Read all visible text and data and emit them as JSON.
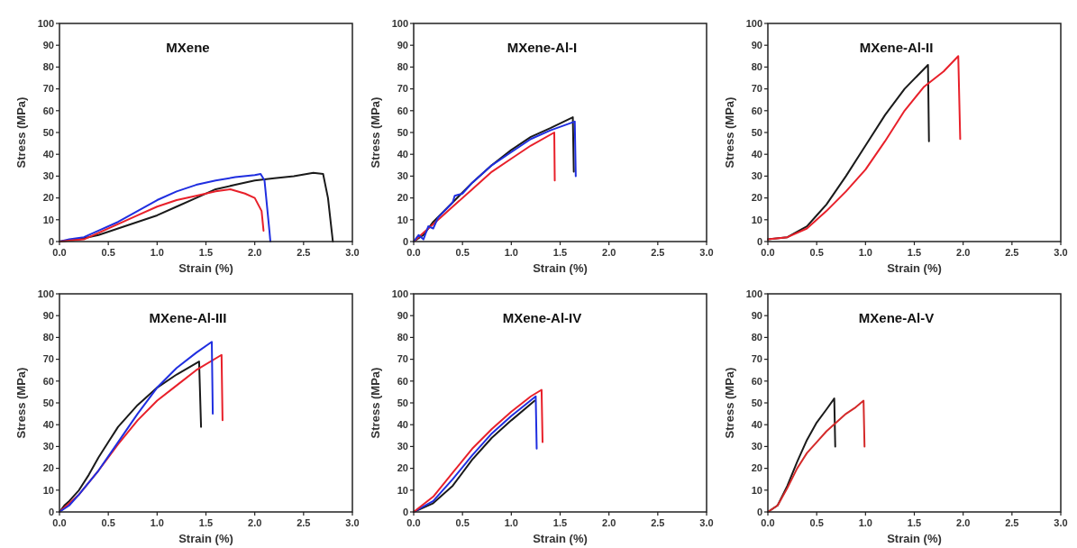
{
  "chart_data": [
    {
      "type": "line",
      "title": "MXene",
      "xlabel": "Strain (%)",
      "ylabel": "Stress (MPa)",
      "xlim": [
        0,
        3
      ],
      "ylim": [
        0,
        100
      ],
      "xticks": [
        {
          "value": 0,
          "label": "0.0"
        },
        {
          "value": 0.5,
          "label": "0.5"
        },
        {
          "value": 1,
          "label": "1.0"
        },
        {
          "value": 1.5,
          "label": "1.5"
        },
        {
          "value": 2,
          "label": "2.0"
        },
        {
          "value": 2.5,
          "label": "2.5"
        },
        {
          "value": 3,
          "label": "3.0"
        }
      ],
      "yticks": [
        0,
        10,
        20,
        30,
        40,
        50,
        60,
        70,
        80,
        90,
        100
      ],
      "grid": false,
      "series": [
        {
          "color": "#1a1a1a",
          "x": [
            0,
            0.2,
            0.4,
            0.6,
            0.8,
            1.0,
            1.2,
            1.4,
            1.6,
            1.8,
            2.0,
            2.2,
            2.4,
            2.6,
            2.7,
            2.75,
            2.8
          ],
          "values": [
            0,
            1,
            3,
            6,
            9,
            12,
            16,
            20,
            24,
            26,
            28,
            29,
            30,
            31.5,
            31,
            20,
            0
          ]
        },
        {
          "color": "#1f2ee0",
          "x": [
            0,
            0.1,
            0.25,
            0.4,
            0.6,
            0.8,
            1.0,
            1.2,
            1.4,
            1.6,
            1.8,
            2.0,
            2.06,
            2.1,
            2.15,
            2.16
          ],
          "values": [
            0,
            1,
            2,
            5,
            9,
            14,
            19,
            23,
            26,
            28,
            29.5,
            30.5,
            31,
            28,
            5,
            0
          ]
        },
        {
          "color": "#e8202a",
          "x": [
            0,
            0.25,
            0.4,
            0.6,
            0.8,
            1.0,
            1.2,
            1.4,
            1.6,
            1.75,
            1.9,
            2.0,
            2.07,
            2.09
          ],
          "values": [
            0,
            1,
            4,
            8,
            12,
            16,
            19,
            21,
            23,
            24,
            22,
            20,
            14,
            5
          ]
        }
      ]
    },
    {
      "type": "line",
      "title": "MXene-Al-I",
      "xlabel": "Strain (%)",
      "ylabel": "Stress (MPa)",
      "xlim": [
        0,
        3
      ],
      "ylim": [
        0,
        100
      ],
      "xticks": [
        {
          "value": 0,
          "label": "0.0"
        },
        {
          "value": 0.5,
          "label": "0.5"
        },
        {
          "value": 1,
          "label": "1.0"
        },
        {
          "value": 1.5,
          "label": "1.5"
        },
        {
          "value": 2,
          "label": "2.0"
        },
        {
          "value": 2.5,
          "label": "2.5"
        },
        {
          "value": 3,
          "label": "3.0"
        }
      ],
      "yticks": [
        0,
        10,
        20,
        30,
        40,
        50,
        60,
        70,
        80,
        90,
        100
      ],
      "grid": false,
      "series": [
        {
          "color": "#1a1a1a",
          "x": [
            0,
            0.1,
            0.2,
            0.4,
            0.6,
            0.8,
            1.0,
            1.2,
            1.4,
            1.63,
            1.64
          ],
          "values": [
            0,
            3,
            9,
            18,
            27,
            35,
            42,
            48,
            52,
            57,
            32
          ]
        },
        {
          "color": "#e8202a",
          "x": [
            0,
            0.1,
            0.2,
            0.4,
            0.6,
            0.8,
            1.0,
            1.2,
            1.44,
            1.445
          ],
          "values": [
            0,
            4,
            8,
            16,
            24,
            32,
            38,
            44,
            50,
            28
          ]
        },
        {
          "color": "#1f2ee0",
          "x": [
            0,
            0.05,
            0.1,
            0.15,
            0.2,
            0.25,
            0.4,
            0.42,
            0.5,
            0.6,
            0.8,
            1.0,
            1.2,
            1.4,
            1.65,
            1.66
          ],
          "values": [
            0,
            3,
            1,
            7,
            6,
            11,
            18,
            21,
            22,
            27,
            35,
            41,
            47,
            51,
            55,
            30
          ]
        }
      ]
    },
    {
      "type": "line",
      "title": "MXene-Al-II",
      "xlabel": "Strain (%)",
      "ylabel": "Stress (MPa)",
      "xlim": [
        0,
        3
      ],
      "ylim": [
        0,
        100
      ],
      "xticks": [
        {
          "value": 0,
          "label": "0.0"
        },
        {
          "value": 0.5,
          "label": "0.5"
        },
        {
          "value": 1,
          "label": "1.0"
        },
        {
          "value": 1.5,
          "label": "1.5"
        },
        {
          "value": 2,
          "label": "2.0"
        },
        {
          "value": 2.5,
          "label": "2.5"
        },
        {
          "value": 3,
          "label": "3.0"
        }
      ],
      "yticks": [
        0,
        10,
        20,
        30,
        40,
        50,
        60,
        70,
        80,
        90,
        100
      ],
      "grid": false,
      "series": [
        {
          "color": "#1a1a1a",
          "x": [
            0,
            0.2,
            0.4,
            0.5,
            0.6,
            0.8,
            1.0,
            1.2,
            1.4,
            1.64,
            1.65
          ],
          "values": [
            1,
            2,
            7,
            12,
            17,
            30,
            44,
            58,
            70,
            81,
            46
          ]
        },
        {
          "color": "#e8202a",
          "x": [
            0,
            0.2,
            0.4,
            0.6,
            0.8,
            1.0,
            1.2,
            1.4,
            1.6,
            1.8,
            1.95,
            1.97
          ],
          "values": [
            1,
            2,
            6,
            14,
            23,
            33,
            46,
            60,
            71,
            78,
            85,
            47
          ]
        }
      ]
    },
    {
      "type": "line",
      "title": "MXene-Al-III",
      "xlabel": "Strain (%)",
      "ylabel": "Stress (MPa)",
      "xlim": [
        0,
        3
      ],
      "ylim": [
        0,
        100
      ],
      "xticks": [
        {
          "value": 0,
          "label": "0.0"
        },
        {
          "value": 0.5,
          "label": "0.5"
        },
        {
          "value": 1,
          "label": "1.0"
        },
        {
          "value": 1.5,
          "label": "1.5"
        },
        {
          "value": 2,
          "label": "2.0"
        },
        {
          "value": 2.5,
          "label": "2.5"
        },
        {
          "value": 3,
          "label": "3.0"
        }
      ],
      "yticks": [
        0,
        10,
        20,
        30,
        40,
        50,
        60,
        70,
        80,
        90,
        100
      ],
      "grid": false,
      "series": [
        {
          "color": "#1a1a1a",
          "x": [
            0,
            0.05,
            0.1,
            0.2,
            0.3,
            0.4,
            0.5,
            0.6,
            0.8,
            1.0,
            1.2,
            1.43,
            1.45
          ],
          "values": [
            0,
            3,
            5,
            10,
            17,
            25,
            32,
            39,
            49,
            57,
            63,
            69,
            39
          ]
        },
        {
          "color": "#e8202a",
          "x": [
            0,
            0.2,
            0.4,
            0.6,
            0.8,
            1.0,
            1.2,
            1.4,
            1.66,
            1.67
          ],
          "values": [
            0,
            8,
            19,
            31,
            42,
            51,
            58,
            65,
            72,
            42
          ]
        },
        {
          "color": "#1f2ee0",
          "x": [
            0,
            0.1,
            0.2,
            0.4,
            0.6,
            0.8,
            1.0,
            1.2,
            1.4,
            1.56,
            1.57
          ],
          "values": [
            0,
            3,
            8,
            19,
            32,
            45,
            57,
            66,
            73,
            78,
            45
          ]
        }
      ]
    },
    {
      "type": "line",
      "title": "MXene-Al-IV",
      "xlabel": "Strain (%)",
      "ylabel": "Stress (MPa)",
      "xlim": [
        0,
        3
      ],
      "ylim": [
        0,
        100
      ],
      "xticks": [
        {
          "value": 0,
          "label": "0.0"
        },
        {
          "value": 0.5,
          "label": "0.5"
        },
        {
          "value": 1,
          "label": "1.0"
        },
        {
          "value": 1.5,
          "label": "1.5"
        },
        {
          "value": 2,
          "label": "2.0"
        },
        {
          "value": 2.5,
          "label": "2.5"
        },
        {
          "value": 3,
          "label": "3.0"
        }
      ],
      "yticks": [
        0,
        10,
        20,
        30,
        40,
        50,
        60,
        70,
        80,
        90,
        100
      ],
      "grid": false,
      "series": [
        {
          "color": "#1a1a1a",
          "x": [
            0,
            0.2,
            0.4,
            0.6,
            0.8,
            1.0,
            1.24
          ],
          "values": [
            0,
            4,
            12,
            24,
            34,
            42,
            51
          ]
        },
        {
          "color": "#1f2ee0",
          "x": [
            0,
            0.2,
            0.4,
            0.6,
            0.8,
            1.0,
            1.25,
            1.26
          ],
          "values": [
            0,
            5,
            15,
            26,
            36,
            44,
            53,
            29
          ]
        },
        {
          "color": "#e8202a",
          "x": [
            0,
            0.2,
            0.4,
            0.6,
            0.8,
            1.0,
            1.2,
            1.31,
            1.32
          ],
          "values": [
            0,
            7,
            18,
            29,
            38,
            46,
            53,
            56,
            32
          ]
        }
      ]
    },
    {
      "type": "line",
      "title": "MXene-Al-V",
      "xlabel": "Strain (%)",
      "ylabel": "Stress (MPa)",
      "xlim": [
        0,
        3
      ],
      "ylim": [
        0,
        100
      ],
      "xticks": [
        {
          "value": 0,
          "label": "0.0"
        },
        {
          "value": 0.5,
          "label": "0.5"
        },
        {
          "value": 1,
          "label": "1.0"
        },
        {
          "value": 1.5,
          "label": "1.5"
        },
        {
          "value": 2,
          "label": "2.0"
        },
        {
          "value": 2.5,
          "label": "2.5"
        },
        {
          "value": 3,
          "label": "3.0"
        }
      ],
      "yticks": [
        0,
        10,
        20,
        30,
        40,
        50,
        60,
        70,
        80,
        90,
        100
      ],
      "grid": false,
      "series": [
        {
          "color": "#1a1a1a",
          "x": [
            0,
            0.1,
            0.2,
            0.3,
            0.4,
            0.5,
            0.6,
            0.68,
            0.69
          ],
          "values": [
            0,
            3,
            12,
            23,
            33,
            41,
            47,
            52,
            30
          ]
        },
        {
          "color": "#d42a2a",
          "x": [
            0,
            0.1,
            0.2,
            0.3,
            0.4,
            0.5,
            0.6,
            0.7,
            0.8,
            0.9,
            0.98,
            0.99
          ],
          "values": [
            0,
            3,
            11,
            20,
            27,
            32,
            37,
            41,
            45,
            48,
            51,
            30
          ]
        }
      ]
    }
  ]
}
